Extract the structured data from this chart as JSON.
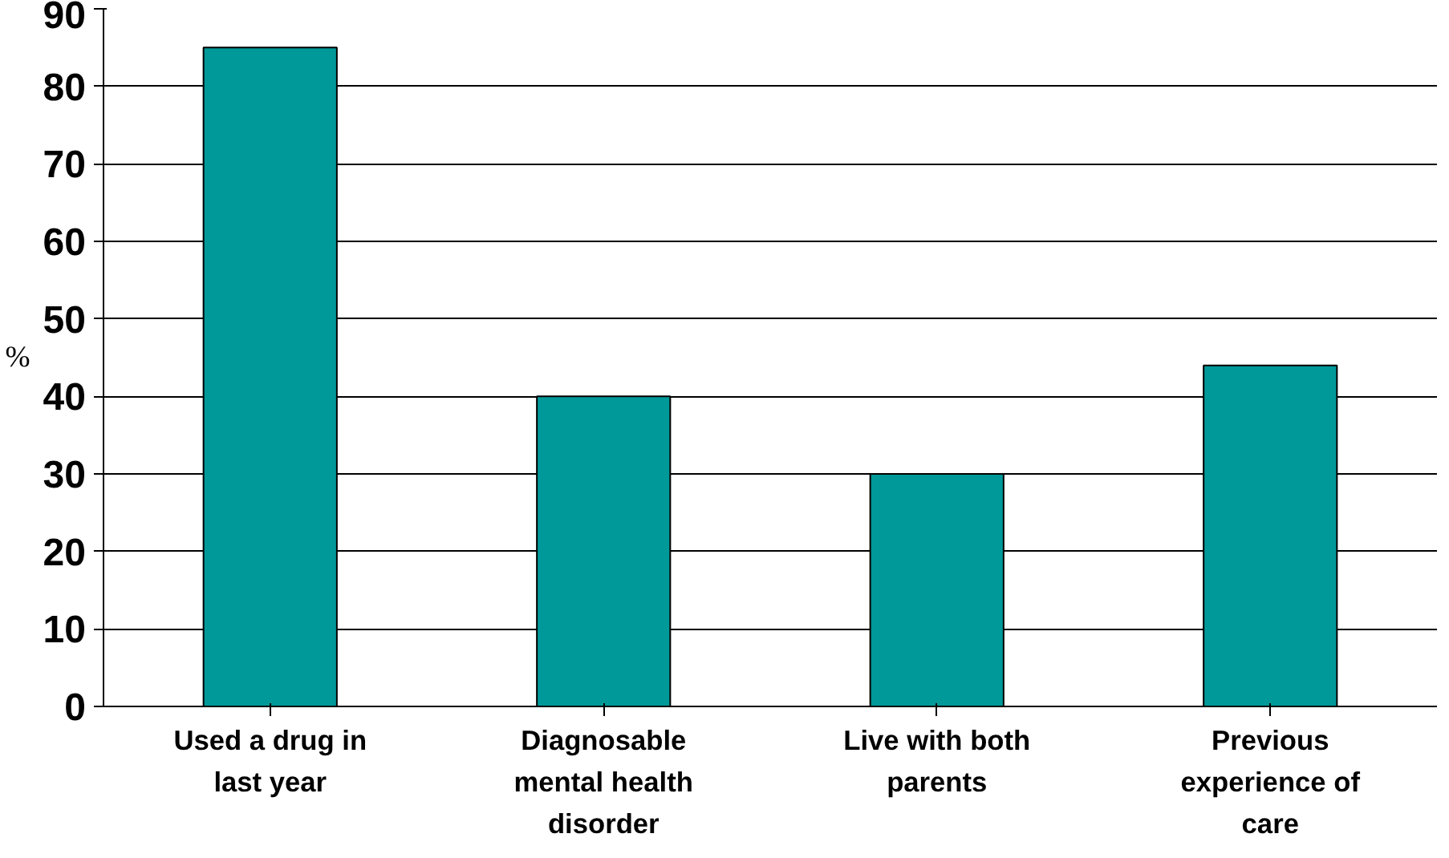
{
  "chart_data": {
    "type": "bar",
    "ylabel": "%",
    "categories": [
      "Used a drug in last year",
      "Diagnosable mental health disorder",
      "Live with both parents",
      "Previous experience of care"
    ],
    "values": [
      85,
      40,
      30,
      44
    ],
    "color": "#009999",
    "ylim": [
      0,
      90
    ],
    "yticks": [
      0,
      10,
      20,
      30,
      40,
      50,
      60,
      70,
      80,
      90
    ],
    "grid": "y"
  }
}
